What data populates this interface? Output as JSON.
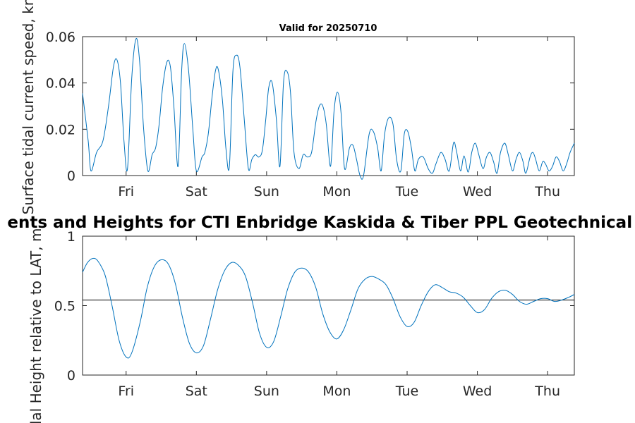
{
  "figure": {
    "top_title": "Valid for 20250710",
    "bottom_title": "ents and Heights for CTI Enbridge  Kaskida & Tiber PPL Geotechnical a"
  },
  "chart_data": [
    {
      "type": "line",
      "title": "Valid for 20250710",
      "xlabel": "",
      "ylabel": "Surface tidal current speed, kn",
      "x_tick_labels": [
        "Fri",
        "Sat",
        "Sun",
        "Mon",
        "Tue",
        "Wed",
        "Thu"
      ],
      "x_tick_days": [
        0.5,
        1.5,
        2.5,
        3.5,
        4.5,
        5.5,
        6.5
      ],
      "xlim": [
        -0.12,
        6.88
      ],
      "ylim": [
        0,
        0.06
      ],
      "y_ticks": [
        0,
        0.02,
        0.04,
        0.06
      ],
      "y_tick_labels": [
        "0",
        "0.02",
        "0.04",
        "0.06"
      ],
      "series": [
        {
          "color": "#0072BD",
          "x": [
            -0.12,
            -0.04,
            0.0,
            0.08,
            0.17,
            0.25,
            0.32,
            0.37,
            0.42,
            0.47,
            0.52,
            0.58,
            0.64,
            0.69,
            0.75,
            0.81,
            0.87,
            0.92,
            0.97,
            1.02,
            1.08,
            1.13,
            1.18,
            1.24,
            1.29,
            1.33,
            1.39,
            1.45,
            1.5,
            1.58,
            1.62,
            1.67,
            1.72,
            1.77,
            1.81,
            1.87,
            1.92,
            1.97,
            2.02,
            2.07,
            2.12,
            2.18,
            2.24,
            2.29,
            2.34,
            2.39,
            2.44,
            2.49,
            2.53,
            2.58,
            2.64,
            2.69,
            2.74,
            2.79,
            2.84,
            2.89,
            2.96,
            3.02,
            3.08,
            3.14,
            3.2,
            3.25,
            3.3,
            3.35,
            3.41,
            3.46,
            3.51,
            3.56,
            3.61,
            3.68,
            3.73,
            3.78,
            3.83,
            3.88,
            3.96,
            4.02,
            4.08,
            4.13,
            4.18,
            4.24,
            4.3,
            4.35,
            4.41,
            4.46,
            4.51,
            4.56,
            4.61,
            4.66,
            4.73,
            4.8,
            4.86,
            4.91,
            4.98,
            5.04,
            5.1,
            5.16,
            5.2,
            5.26,
            5.31,
            5.37,
            5.42,
            5.47,
            5.52,
            5.58,
            5.63,
            5.68,
            5.73,
            5.78,
            5.83,
            5.89,
            5.94,
            6.0,
            6.05,
            6.1,
            6.15,
            6.19,
            6.25,
            6.29,
            6.33,
            6.38,
            6.43,
            6.47,
            6.52,
            6.57,
            6.62,
            6.67,
            6.72,
            6.77,
            6.82,
            6.88
          ],
          "values": [
            0.0355,
            0.015,
            0.002,
            0.01,
            0.015,
            0.03,
            0.047,
            0.05,
            0.04,
            0.015,
            0.003,
            0.042,
            0.059,
            0.05,
            0.02,
            0.002,
            0.009,
            0.012,
            0.022,
            0.038,
            0.049,
            0.047,
            0.03,
            0.004,
            0.045,
            0.057,
            0.045,
            0.02,
            0.002,
            0.008,
            0.01,
            0.018,
            0.033,
            0.045,
            0.046,
            0.033,
            0.012,
            0.004,
            0.045,
            0.052,
            0.047,
            0.025,
            0.003,
            0.007,
            0.009,
            0.008,
            0.011,
            0.025,
            0.038,
            0.04,
            0.024,
            0.004,
            0.04,
            0.045,
            0.036,
            0.01,
            0.003,
            0.009,
            0.008,
            0.01,
            0.023,
            0.03,
            0.03,
            0.022,
            0.004,
            0.028,
            0.036,
            0.027,
            0.003,
            0.012,
            0.013,
            0.007,
            0.0,
            0.0,
            0.018,
            0.019,
            0.012,
            0.002,
            0.018,
            0.025,
            0.022,
            0.007,
            0.002,
            0.018,
            0.019,
            0.012,
            0.002,
            0.007,
            0.008,
            0.003,
            0.001,
            0.005,
            0.01,
            0.007,
            0.002,
            0.014,
            0.011,
            0.002,
            0.0085,
            0.0015,
            0.01,
            0.014,
            0.009,
            0.003,
            0.008,
            0.01,
            0.006,
            0.001,
            0.01,
            0.014,
            0.009,
            0.002,
            0.007,
            0.01,
            0.006,
            0.001,
            0.008,
            0.01,
            0.007,
            0.002,
            0.006,
            0.005,
            0.002,
            0.004,
            0.008,
            0.006,
            0.002,
            0.005,
            0.01,
            0.014
          ]
        }
      ]
    },
    {
      "type": "line",
      "title": "ents and Heights for CTI Enbridge  Kaskida & Tiber PPL Geotechnical a",
      "xlabel": "",
      "ylabel": "Tidal Height relative to LAT, m",
      "x_tick_labels": [
        "Fri",
        "Sat",
        "Sun",
        "Mon",
        "Tue",
        "Wed",
        "Thu"
      ],
      "x_tick_days": [
        0.5,
        1.5,
        2.5,
        3.5,
        4.5,
        5.5,
        6.5
      ],
      "xlim": [
        -0.12,
        6.88
      ],
      "ylim": [
        0,
        1
      ],
      "y_ticks": [
        0,
        0.5,
        1
      ],
      "y_tick_labels": [
        "0",
        "0.5",
        "1"
      ],
      "reference_line": 0.54,
      "series": [
        {
          "color": "#0072BD",
          "x": [
            -0.12,
            -0.05,
            0.03,
            0.1,
            0.2,
            0.3,
            0.4,
            0.5,
            0.58,
            0.7,
            0.8,
            0.9,
            1.0,
            1.1,
            1.2,
            1.3,
            1.4,
            1.5,
            1.6,
            1.7,
            1.8,
            1.9,
            2.0,
            2.1,
            2.2,
            2.3,
            2.4,
            2.5,
            2.6,
            2.7,
            2.8,
            2.9,
            3.0,
            3.1,
            3.2,
            3.3,
            3.4,
            3.5,
            3.6,
            3.7,
            3.8,
            3.9,
            4.0,
            4.1,
            4.2,
            4.3,
            4.4,
            4.5,
            4.6,
            4.7,
            4.8,
            4.9,
            5.0,
            5.1,
            5.2,
            5.3,
            5.4,
            5.5,
            5.6,
            5.7,
            5.8,
            5.9,
            6.0,
            6.1,
            6.2,
            6.3,
            6.4,
            6.5,
            6.6,
            6.7,
            6.8,
            6.88
          ],
          "values": [
            0.74,
            0.81,
            0.84,
            0.82,
            0.72,
            0.5,
            0.25,
            0.13,
            0.16,
            0.38,
            0.63,
            0.78,
            0.83,
            0.8,
            0.66,
            0.42,
            0.23,
            0.16,
            0.21,
            0.4,
            0.61,
            0.75,
            0.81,
            0.79,
            0.71,
            0.52,
            0.3,
            0.2,
            0.24,
            0.42,
            0.62,
            0.74,
            0.77,
            0.74,
            0.63,
            0.44,
            0.31,
            0.26,
            0.33,
            0.47,
            0.62,
            0.69,
            0.71,
            0.69,
            0.65,
            0.55,
            0.42,
            0.35,
            0.38,
            0.5,
            0.6,
            0.65,
            0.63,
            0.6,
            0.59,
            0.56,
            0.5,
            0.45,
            0.47,
            0.55,
            0.6,
            0.61,
            0.58,
            0.53,
            0.51,
            0.53,
            0.55,
            0.55,
            0.53,
            0.54,
            0.56,
            0.58
          ]
        }
      ]
    }
  ]
}
